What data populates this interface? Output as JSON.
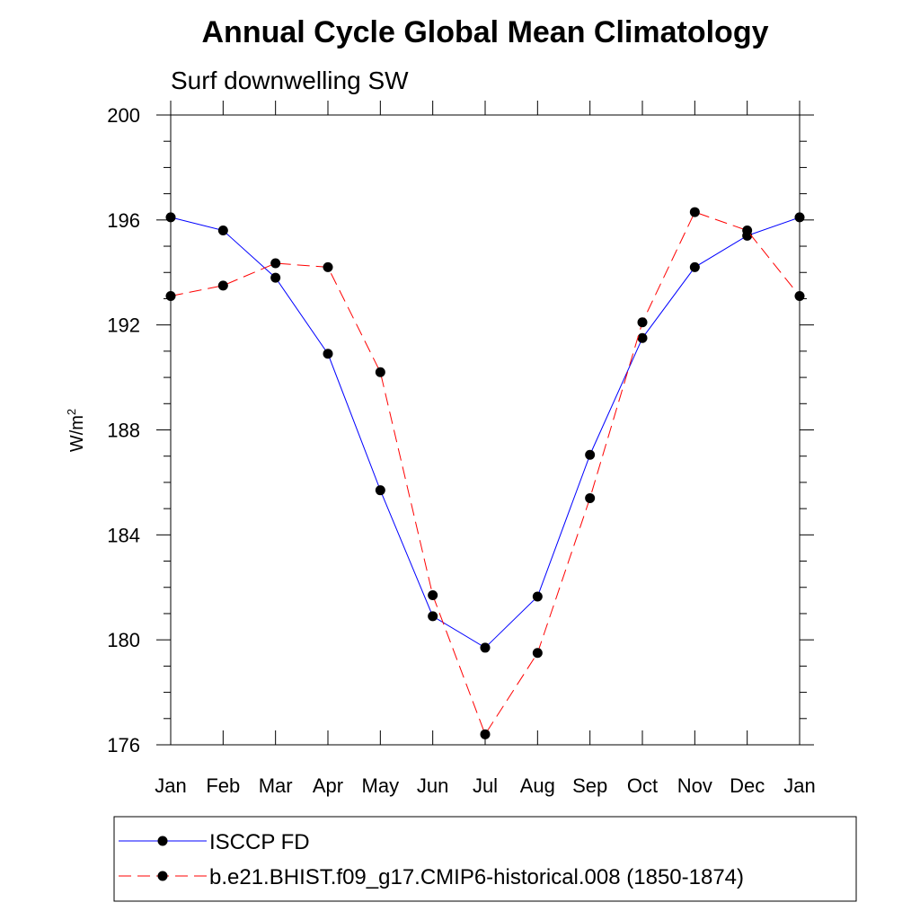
{
  "chart_data": {
    "type": "line",
    "title": "Annual Cycle Global Mean Climatology",
    "subtitle": "Surf downwelling SW",
    "ylabel": "W/m",
    "ylabel_sup": "2",
    "xlabel": "",
    "categories": [
      "Jan",
      "Feb",
      "Mar",
      "Apr",
      "May",
      "Jun",
      "Jul",
      "Aug",
      "Sep",
      "Oct",
      "Nov",
      "Dec",
      "Jan"
    ],
    "ylim": [
      176,
      200
    ],
    "yticks": [
      "176",
      "180",
      "184",
      "188",
      "192",
      "196",
      "200"
    ],
    "grid": false,
    "legend_position": "bottom",
    "series": [
      {
        "name": "ISCCP FD",
        "color": "#0000ff",
        "style": "solid",
        "values": [
          196.1,
          195.6,
          193.8,
          190.9,
          185.7,
          180.9,
          179.7,
          181.65,
          187.05,
          191.5,
          194.2,
          195.4,
          196.1
        ]
      },
      {
        "name": "b.e21.BHIST.f09_g17.CMIP6-historical.008 (1850-1874)",
        "color": "#ff0000",
        "style": "dashed",
        "values": [
          193.1,
          193.5,
          194.35,
          194.2,
          190.2,
          181.7,
          176.4,
          179.5,
          185.4,
          192.1,
          196.3,
          195.6,
          193.1
        ]
      }
    ]
  }
}
